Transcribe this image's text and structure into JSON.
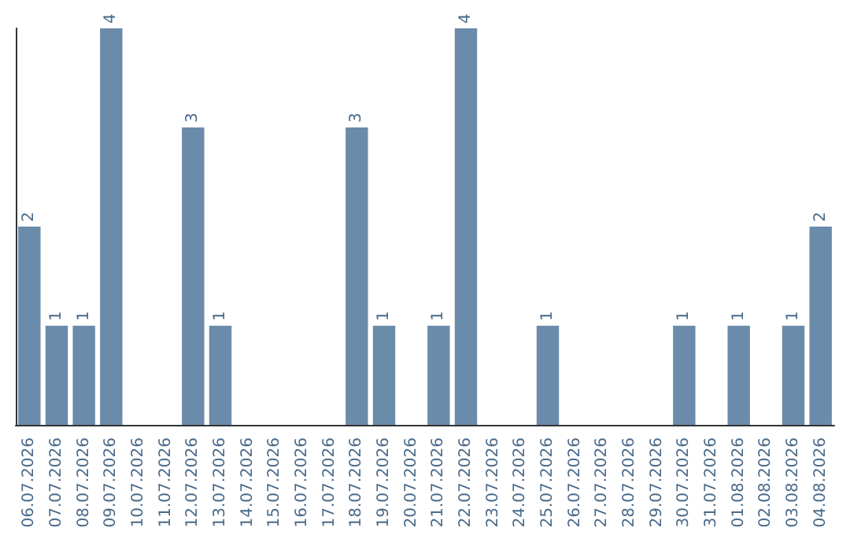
{
  "chart_data": {
    "type": "bar",
    "categories": [
      "06.07.2026",
      "07.07.2026",
      "08.07.2026",
      "09.07.2026",
      "10.07.2026",
      "11.07.2026",
      "12.07.2026",
      "13.07.2026",
      "14.07.2026",
      "15.07.2026",
      "16.07.2026",
      "17.07.2026",
      "18.07.2026",
      "19.07.2026",
      "20.07.2026",
      "21.07.2026",
      "22.07.2026",
      "23.07.2026",
      "24.07.2026",
      "25.07.2026",
      "26.07.2026",
      "27.07.2026",
      "28.07.2026",
      "29.07.2026",
      "30.07.2026",
      "31.07.2026",
      "01.08.2026",
      "02.08.2026",
      "03.08.2026",
      "04.08.2026"
    ],
    "values": [
      2,
      1,
      1,
      4,
      0,
      0,
      3,
      1,
      0,
      0,
      0,
      0,
      3,
      1,
      0,
      1,
      4,
      0,
      0,
      1,
      0,
      0,
      0,
      0,
      1,
      0,
      1,
      0,
      1,
      2
    ],
    "value_labels": [
      "2",
      "1",
      "1",
      "4",
      null,
      null,
      "3",
      "1",
      null,
      null,
      null,
      null,
      "3",
      "1",
      null,
      "1",
      "4",
      null,
      null,
      "1",
      null,
      null,
      null,
      null,
      "1",
      null,
      "1",
      null,
      "1",
      "2"
    ],
    "color": "#6b8bab",
    "ylim": [
      0,
      4
    ],
    "tick_labels": "x",
    "grid": false
  }
}
